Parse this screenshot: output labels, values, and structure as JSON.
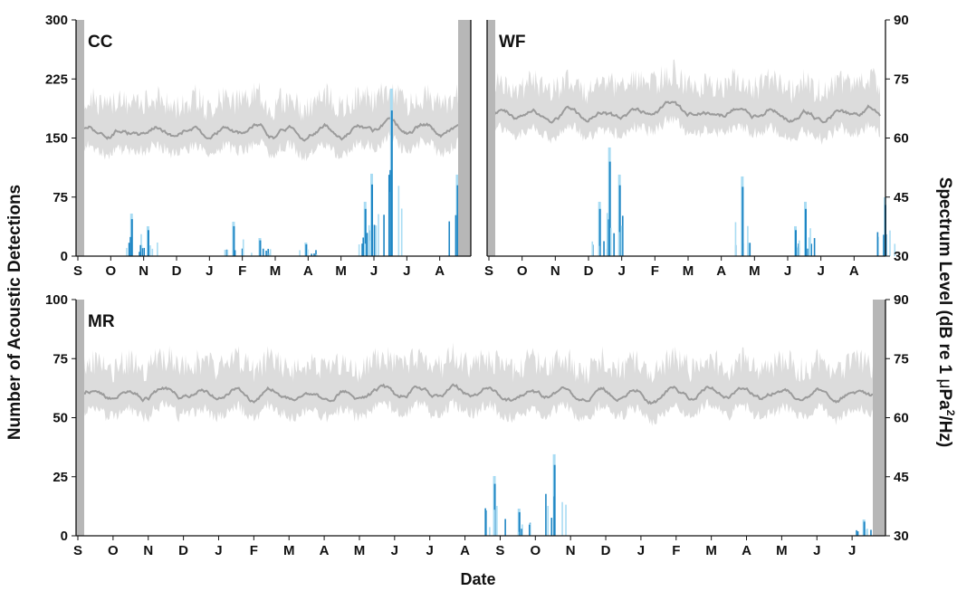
{
  "figure": {
    "y_left_label": "Number of Acoustic Detections",
    "y_right_label_prefix": "Spectrum Level (dB re 1 ",
    "y_right_label_mu": "μ",
    "y_right_label_pa": "Pa",
    "y_right_label_sup": "2",
    "y_right_label_suffix": "/Hz)",
    "x_label": "Date"
  },
  "colors": {
    "detections_dark": "#1f86c4",
    "detections_light": "#a9dcf3",
    "spectrum_median": "#9b9b9b",
    "spectrum_band": "#dcdcdc",
    "gap_bar": "#b7b7b7"
  },
  "chart_data": [
    {
      "type": "bar",
      "panel": "CC",
      "label": "CC",
      "x_ticks": [
        "S",
        "O",
        "N",
        "D",
        "J",
        "F",
        "M",
        "A",
        "M",
        "J",
        "J",
        "A"
      ],
      "y_left": {
        "ticks": [
          "0",
          "75",
          "150",
          "225",
          "300"
        ],
        "lim": [
          0,
          300
        ]
      },
      "y_right": {
        "ticks": [],
        "lim": [
          30,
          90
        ]
      },
      "detection_peaks": [
        {
          "month": 1.7,
          "value": 47
        },
        {
          "month": 2.2,
          "value": 33
        },
        {
          "month": 4.8,
          "value": 38
        },
        {
          "month": 5.6,
          "value": 20
        },
        {
          "month": 7.0,
          "value": 15
        },
        {
          "month": 8.8,
          "value": 60
        },
        {
          "month": 9.0,
          "value": 91
        },
        {
          "month": 9.6,
          "value": 185
        },
        {
          "month": 11.6,
          "value": 90
        }
      ],
      "spectrum_median_level": 62,
      "gap_edges": [
        "left",
        "right"
      ]
    },
    {
      "type": "bar",
      "panel": "WF",
      "label": "WF",
      "x_ticks": [
        "S",
        "O",
        "N",
        "D",
        "J",
        "F",
        "M",
        "A",
        "M",
        "J",
        "J",
        "A"
      ],
      "y_left": {
        "ticks": [],
        "lim": [
          0,
          300
        ]
      },
      "y_right": {
        "ticks": [
          "30",
          "45",
          "60",
          "75",
          "90"
        ],
        "lim": [
          30,
          90
        ]
      },
      "detection_peaks": [
        {
          "month": 3.4,
          "value": 60
        },
        {
          "month": 3.7,
          "value": 120
        },
        {
          "month": 4.0,
          "value": 90
        },
        {
          "month": 7.7,
          "value": 88
        },
        {
          "month": 9.3,
          "value": 33
        },
        {
          "month": 9.6,
          "value": 60
        },
        {
          "month": 12.0,
          "value": 65
        }
      ],
      "spectrum_median_level": 66,
      "gap_edges": [
        "left"
      ]
    },
    {
      "type": "bar",
      "panel": "MR",
      "label": "MR",
      "x_ticks": [
        "S",
        "O",
        "N",
        "D",
        "J",
        "F",
        "M",
        "A",
        "M",
        "J",
        "J",
        "A",
        "S",
        "O",
        "N",
        "D",
        "J",
        "F",
        "M",
        "A",
        "M",
        "J",
        "J"
      ],
      "y_left": {
        "ticks": [
          "0",
          "25",
          "50",
          "75",
          "100"
        ],
        "lim": [
          0,
          100
        ]
      },
      "y_right": {
        "ticks": [
          "30",
          "45",
          "60",
          "75",
          "90"
        ],
        "lim": [
          30,
          90
        ]
      },
      "detection_peaks": [
        {
          "month": 11.9,
          "value": 22
        },
        {
          "month": 12.6,
          "value": 10
        },
        {
          "month": 13.6,
          "value": 30
        },
        {
          "month": 22.4,
          "value": 6
        }
      ],
      "spectrum_median_level": 66,
      "gap_edges": [
        "left",
        "right"
      ]
    }
  ]
}
